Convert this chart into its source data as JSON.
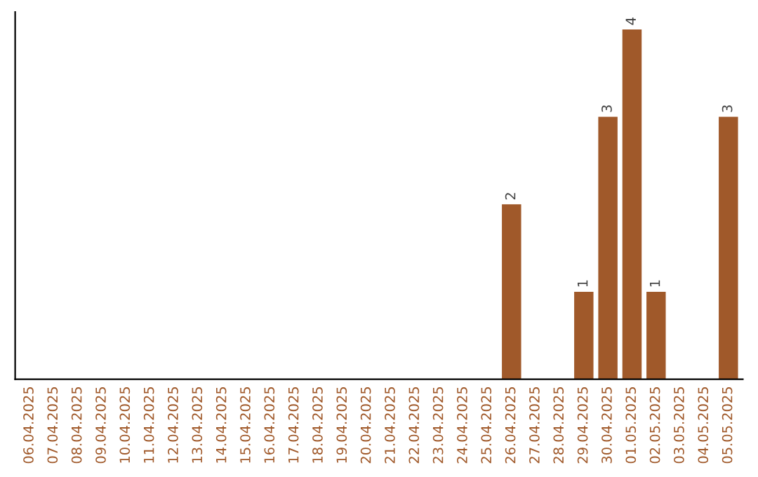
{
  "chart_data": {
    "type": "bar",
    "categories": [
      "06.04.2025",
      "07.04.2025",
      "08.04.2025",
      "09.04.2025",
      "10.04.2025",
      "11.04.2025",
      "12.04.2025",
      "13.04.2025",
      "14.04.2025",
      "15.04.2025",
      "16.04.2025",
      "17.04.2025",
      "18.04.2025",
      "19.04.2025",
      "20.04.2025",
      "21.04.2025",
      "22.04.2025",
      "23.04.2025",
      "24.04.2025",
      "25.04.2025",
      "26.04.2025",
      "27.04.2025",
      "28.04.2025",
      "29.04.2025",
      "30.04.2025",
      "01.05.2025",
      "02.05.2025",
      "03.05.2025",
      "04.05.2025",
      "05.05.2025"
    ],
    "values": [
      null,
      null,
      null,
      null,
      null,
      null,
      null,
      null,
      null,
      null,
      null,
      null,
      null,
      null,
      null,
      null,
      null,
      null,
      null,
      null,
      2,
      null,
      null,
      1,
      3,
      4,
      1,
      null,
      null,
      3
    ],
    "data_labels": true,
    "color": "#a0592a",
    "grid": false,
    "tick_labels": "x"
  }
}
